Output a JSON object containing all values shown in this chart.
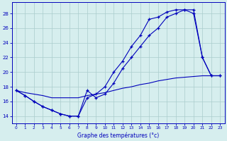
{
  "xlabel": "Graphe des températures (°c)",
  "xlim": [
    -0.5,
    23.5
  ],
  "ylim": [
    13,
    29.5
  ],
  "yticks": [
    14,
    16,
    18,
    20,
    22,
    24,
    26,
    28
  ],
  "xticks": [
    0,
    1,
    2,
    3,
    4,
    5,
    6,
    7,
    8,
    9,
    10,
    11,
    12,
    13,
    14,
    15,
    16,
    17,
    18,
    19,
    20,
    21,
    22,
    23
  ],
  "bg_color": "#d6eeee",
  "line_color": "#0000bb",
  "grid_color": "#aacccc",
  "line1_x": [
    0,
    1,
    2,
    3,
    4,
    5,
    6,
    7,
    8,
    9,
    10,
    11,
    12,
    13,
    14,
    15,
    16,
    17,
    18,
    19,
    20,
    21,
    22,
    23
  ],
  "line1_y": [
    17.5,
    16.8,
    16.0,
    15.3,
    14.8,
    14.3,
    14.0,
    14.0,
    17.5,
    16.5,
    17.0,
    18.5,
    20.5,
    22.0,
    23.5,
    25.0,
    26.0,
    27.5,
    28.0,
    28.5,
    28.0,
    22.0,
    19.5,
    19.5
  ],
  "line2_x": [
    0,
    1,
    2,
    3,
    4,
    5,
    6,
    7,
    8,
    9,
    10,
    11,
    12,
    13,
    14,
    15,
    16,
    17,
    18,
    19,
    20,
    21,
    22,
    23
  ],
  "line2_y": [
    17.5,
    16.8,
    16.0,
    15.3,
    14.8,
    14.3,
    14.0,
    14.0,
    16.5,
    17.0,
    18.0,
    20.0,
    21.5,
    23.5,
    25.0,
    27.2,
    27.5,
    28.2,
    28.5,
    28.5,
    28.5,
    22.0,
    19.5,
    19.5
  ],
  "line3_x": [
    0,
    1,
    2,
    3,
    4,
    5,
    6,
    7,
    8,
    9,
    10,
    11,
    12,
    13,
    14,
    15,
    16,
    17,
    18,
    19,
    20,
    21,
    22,
    23
  ],
  "line3_y": [
    17.5,
    17.2,
    17.0,
    16.8,
    16.5,
    16.5,
    16.5,
    16.5,
    16.8,
    17.0,
    17.2,
    17.5,
    17.8,
    18.0,
    18.3,
    18.5,
    18.8,
    19.0,
    19.2,
    19.3,
    19.4,
    19.5,
    19.5,
    19.5
  ]
}
